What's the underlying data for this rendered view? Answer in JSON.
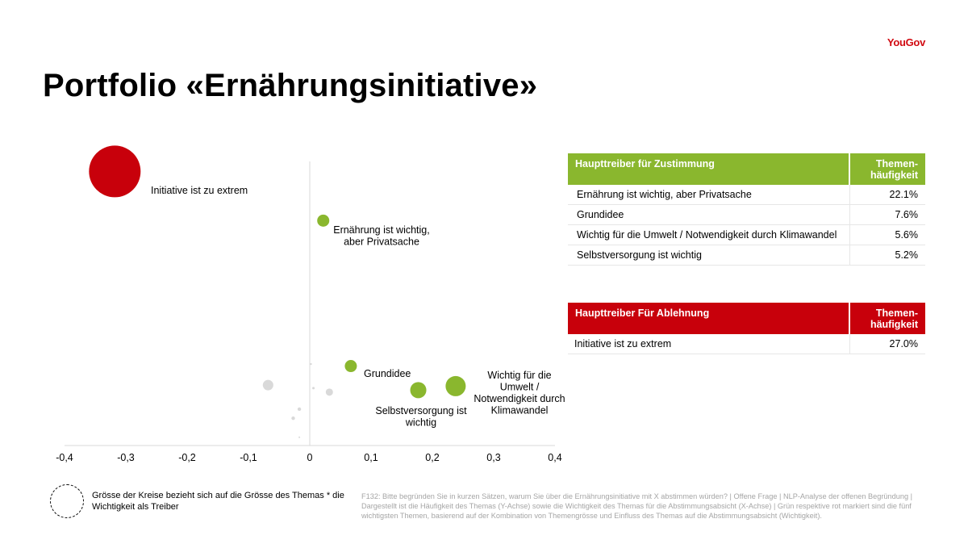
{
  "brand": "YouGov",
  "title": "Portfolio «Ernährungsinitiative»",
  "colors": {
    "pro": "#8ab72e",
    "con": "#c8000b",
    "neutral": "#d9d9d9",
    "axis": "#d9d9d9"
  },
  "chart_data": {
    "type": "scatter",
    "xlabel": "",
    "ylabel": "",
    "xlim": [
      -0.4,
      0.4
    ],
    "x_ticks": [
      "-0,4",
      "-0,3",
      "-0,2",
      "-0,1",
      "0",
      "0,1",
      "0,2",
      "0,3",
      "0,4"
    ],
    "grid": false,
    "note": "y axis unlabeled (theme frequency); bubble size = theme size × importance",
    "points": [
      {
        "label": "Initiative ist zu extrem",
        "x": -0.318,
        "y": 27.0,
        "size": 32,
        "color": "con",
        "labeled": true
      },
      {
        "label": "Ernährung ist wichtig, aber Privatsache",
        "x": 0.022,
        "y": 22.1,
        "size": 7.5,
        "color": "pro",
        "labeled": true
      },
      {
        "label": "Grundidee",
        "x": 0.067,
        "y": 7.6,
        "size": 7.5,
        "color": "pro",
        "labeled": true
      },
      {
        "label": "Selbstversorgung ist wichtig",
        "x": 0.177,
        "y": 5.2,
        "size": 10,
        "color": "pro",
        "labeled": true
      },
      {
        "label": "Wichtig für die Umwelt / Notwendigkeit durch Klimawandel",
        "x": 0.238,
        "y": 5.6,
        "size": 12.5,
        "color": "pro",
        "labeled": true
      },
      {
        "label": "",
        "x": -0.068,
        "y": 5.7,
        "size": 6.5,
        "color": "neutral",
        "labeled": false
      },
      {
        "label": "",
        "x": 0.032,
        "y": 5.0,
        "size": 4.5,
        "color": "neutral",
        "labeled": false
      },
      {
        "label": "",
        "x": 0.006,
        "y": 5.4,
        "size": 1.5,
        "color": "neutral",
        "labeled": false
      },
      {
        "label": "",
        "x": 0.002,
        "y": 7.8,
        "size": 1.2,
        "color": "neutral",
        "labeled": false
      },
      {
        "label": "",
        "x": -0.017,
        "y": 3.3,
        "size": 2.2,
        "color": "neutral",
        "labeled": false
      },
      {
        "label": "",
        "x": -0.027,
        "y": 2.4,
        "size": 2.2,
        "color": "neutral",
        "labeled": false
      },
      {
        "label": "",
        "x": -0.017,
        "y": 0.5,
        "size": 1.0,
        "color": "neutral",
        "labeled": false
      }
    ]
  },
  "table_pro": {
    "header": "Haupttreiber für Zustimmung",
    "share_header": "Themen-\nhäufigkeit",
    "rows": [
      {
        "label": "Ernährung ist wichtig, aber Privatsache",
        "value": "22.1%"
      },
      {
        "label": "Grundidee",
        "value": "7.6%"
      },
      {
        "label": "Wichtig für die Umwelt / Notwendigkeit durch Klimawandel",
        "value": "5.6%"
      },
      {
        "label": "Selbstversorgung ist wichtig",
        "value": "5.2%"
      }
    ]
  },
  "table_con": {
    "header": "Haupttreiber Für Ablehnung",
    "share_header": "Themen-\nhäufigkeit",
    "rows": [
      {
        "label": "Initiative ist zu extrem",
        "value": "27.0%"
      }
    ]
  },
  "legend_text": "Grösse der Kreise bezieht sich auf die Grösse des Themas * die Wichtigkeit als Treiber",
  "footnote": "F132: Bitte begründen Sie in kurzen Sätzen, warum Sie über die Ernährungsinitiative mit X abstimmen würden? | Offene Frage | NLP-Analyse der offenen Begründung | Dargestellt ist die Häufigkeit des Themas (Y-Achse) sowie die Wichtigkeit des Themas für die Abstimmungsabsicht (X-Achse) | Grün respektive rot markiert sind die fünf wichtigsten Themen, basierend auf der Kombination von Themengrösse und Einfluss des Themas auf die Abstimmungsabsicht (Wichtigkeit)."
}
